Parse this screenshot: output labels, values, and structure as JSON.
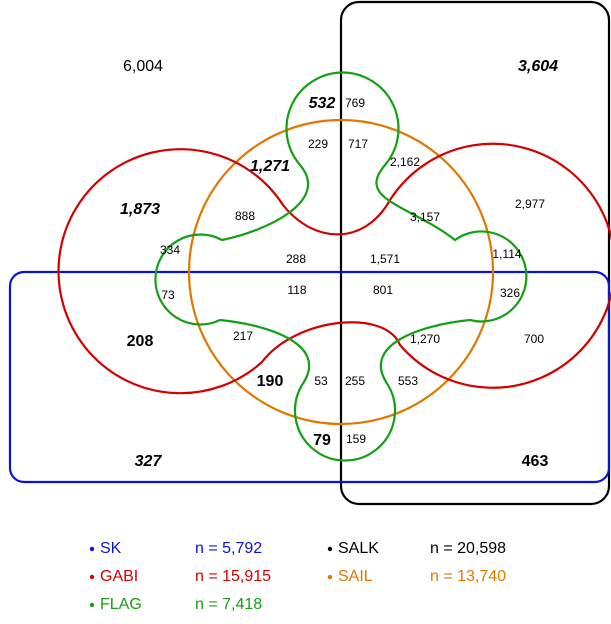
{
  "regions": [
    {
      "label": "6,004",
      "style": "normal"
    },
    {
      "label": "3,604",
      "style": "bold-italic"
    },
    {
      "label": "532",
      "style": "bold-italic"
    },
    {
      "label": "769",
      "style": "normal"
    },
    {
      "label": "229",
      "style": "normal"
    },
    {
      "label": "717",
      "style": "normal"
    },
    {
      "label": "1,271",
      "style": "bold-italic"
    },
    {
      "label": "2,162",
      "style": "normal"
    },
    {
      "label": "1,873",
      "style": "bold-italic"
    },
    {
      "label": "888",
      "style": "normal"
    },
    {
      "label": "3,157",
      "style": "normal"
    },
    {
      "label": "2,977",
      "style": "normal"
    },
    {
      "label": "334",
      "style": "normal"
    },
    {
      "label": "288",
      "style": "normal"
    },
    {
      "label": "1,571",
      "style": "normal"
    },
    {
      "label": "1,114",
      "style": "normal"
    },
    {
      "label": "73",
      "style": "normal"
    },
    {
      "label": "118",
      "style": "normal"
    },
    {
      "label": "801",
      "style": "normal"
    },
    {
      "label": "326",
      "style": "normal"
    },
    {
      "label": "208",
      "style": "bold"
    },
    {
      "label": "217",
      "style": "normal"
    },
    {
      "label": "1,270",
      "style": "normal"
    },
    {
      "label": "700",
      "style": "normal"
    },
    {
      "label": "190",
      "style": "bold"
    },
    {
      "label": "53",
      "style": "normal"
    },
    {
      "label": "255",
      "style": "normal"
    },
    {
      "label": "553",
      "style": "normal"
    },
    {
      "label": "79",
      "style": "bold"
    },
    {
      "label": "159",
      "style": "normal"
    },
    {
      "label": "327",
      "style": "bold-italic"
    },
    {
      "label": "463",
      "style": "bold"
    }
  ],
  "legend": [
    {
      "name": "SK",
      "n": "n = 5,792",
      "color": "#0a14d6"
    },
    {
      "name": "SALK",
      "n": "n = 20,598",
      "color": "#000000"
    },
    {
      "name": "GABI",
      "n": "n = 15,915",
      "color": "#d40000"
    },
    {
      "name": "SAIL",
      "n": "n = 13,740",
      "color": "#e07800"
    },
    {
      "name": "FLAG",
      "n": "n = 7,418",
      "color": "#14a014"
    }
  ]
}
